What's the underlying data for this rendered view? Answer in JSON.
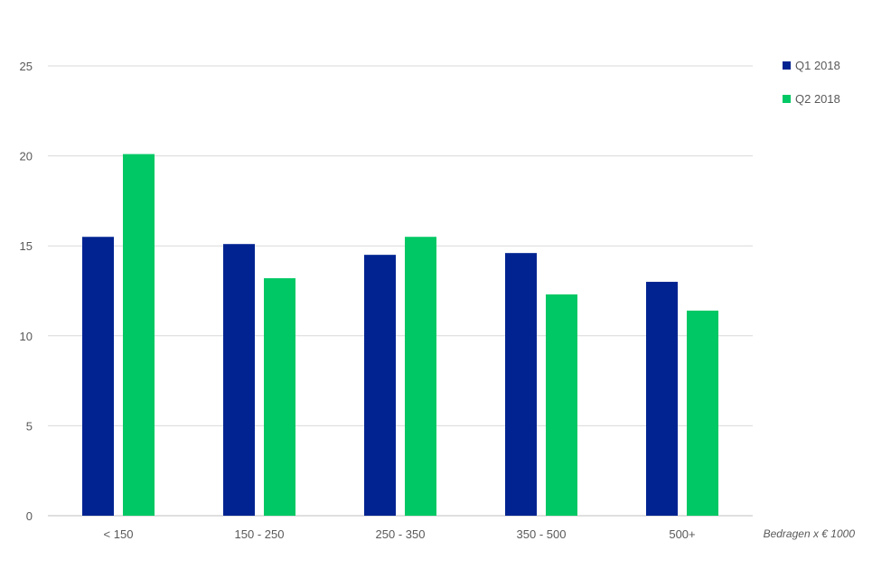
{
  "chart_data": {
    "type": "bar",
    "title": "",
    "xlabel": "Bedragen x € 1000",
    "ylabel": "",
    "categories": [
      "< 150",
      "150 - 250",
      "250 - 350",
      "350 - 500",
      "500+"
    ],
    "series": [
      {
        "name": "Q1 2018",
        "color": "#002391",
        "values": [
          15.5,
          15.1,
          14.5,
          14.6,
          13.0
        ]
      },
      {
        "name": "Q2 2018",
        "color": "#00c864",
        "values": [
          20.1,
          13.2,
          15.5,
          12.3,
          11.4
        ]
      }
    ],
    "ylim": [
      0,
      25
    ],
    "yticks": [
      "0",
      "5",
      "10",
      "15",
      "20",
      "25"
    ],
    "grid": true,
    "legend_position": "top-right"
  }
}
